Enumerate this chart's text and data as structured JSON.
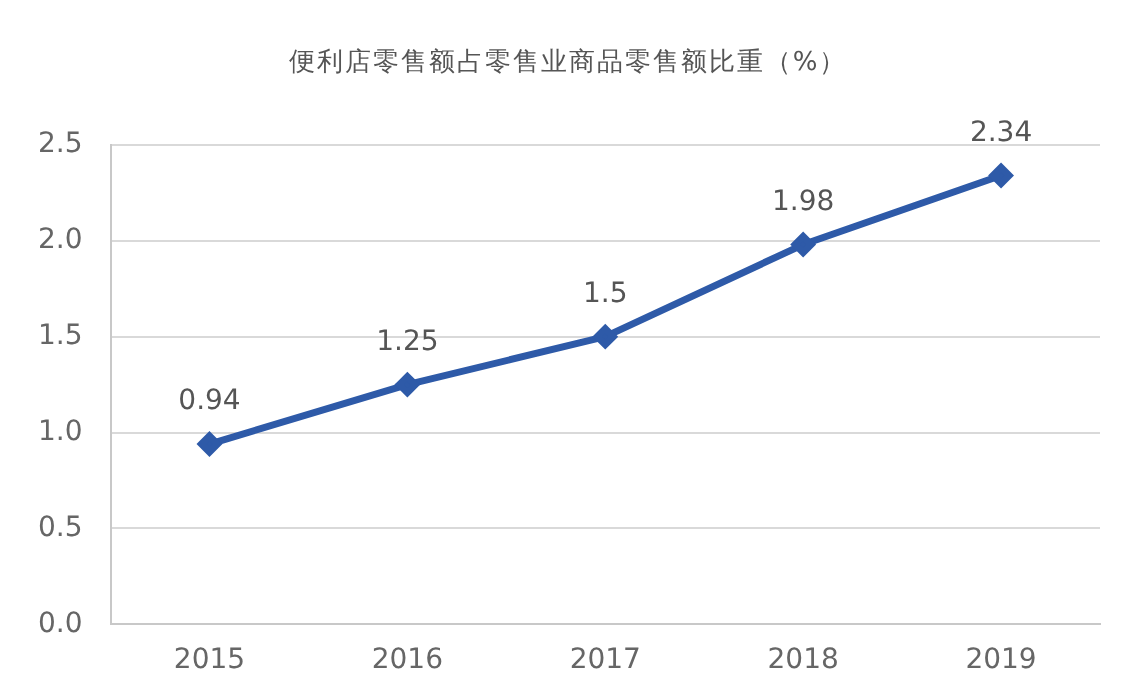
{
  "chart_data": {
    "type": "line",
    "title": "便利店零售额占零售业商品零售额比重（%）",
    "categories": [
      "2015",
      "2016",
      "2017",
      "2018",
      "2019"
    ],
    "series": [
      {
        "color": "#2e5aa8",
        "values": [
          0.94,
          1.25,
          1.5,
          1.98,
          2.34
        ]
      }
    ],
    "ylim": [
      0,
      2.5
    ],
    "yticks": [
      {
        "value": 0,
        "label": "0.0"
      },
      {
        "value": 0.5,
        "label": "0.5"
      },
      {
        "value": 1,
        "label": "1.0"
      },
      {
        "value": 1.5,
        "label": "1.5"
      },
      {
        "value": 2,
        "label": "2.0"
      },
      {
        "value": 2.5,
        "label": "2.5"
      }
    ],
    "grid": "y",
    "legend": false,
    "marker": "diamond",
    "line_style": "solid",
    "data_labels": true
  }
}
